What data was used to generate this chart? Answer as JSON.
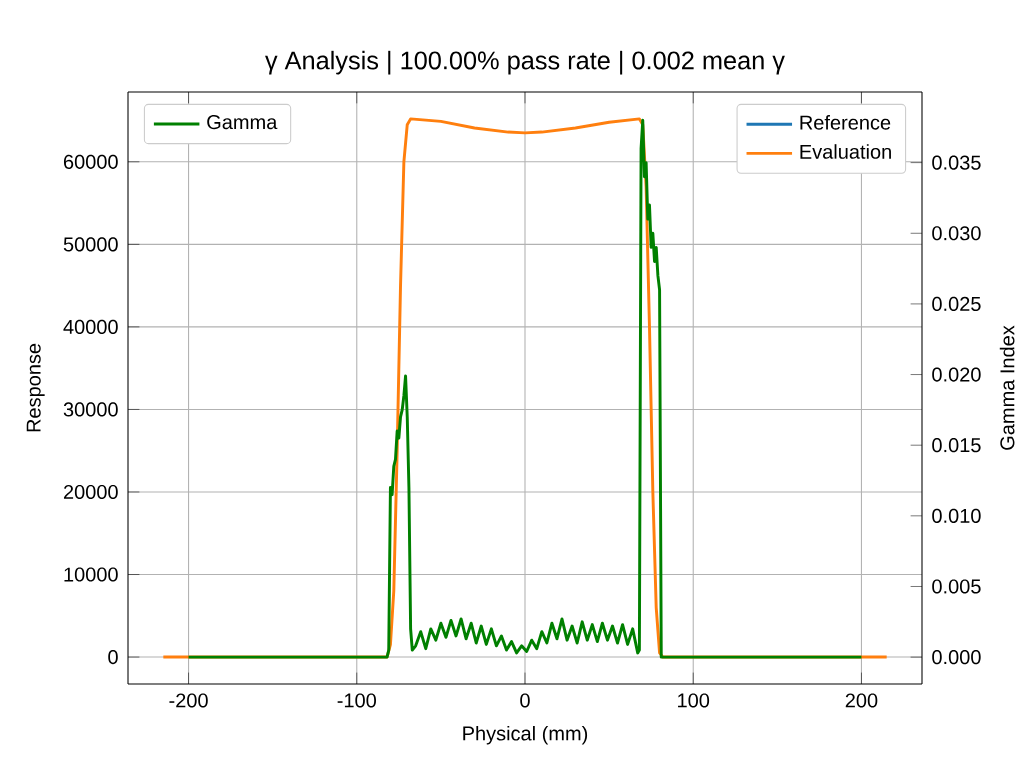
{
  "chart_data": {
    "type": "line",
    "title": "γ Analysis | 100.00% pass rate | 0.002 mean γ",
    "xlabel": "Physical (mm)",
    "ylabel": "Response",
    "y2label": "Gamma Index",
    "xlim": [
      -236,
      236
    ],
    "ylim": [
      -3260,
      68460
    ],
    "y2lim": [
      -0.0019,
      0.04
    ],
    "xticks": [
      -200,
      -100,
      0,
      100,
      200
    ],
    "yticks": [
      0,
      10000,
      20000,
      30000,
      40000,
      50000,
      60000
    ],
    "y2ticks": [
      {
        "value": 0,
        "label": "0.000"
      },
      {
        "value": 0.005,
        "label": "0.005"
      },
      {
        "value": 0.01,
        "label": "0.010"
      },
      {
        "value": 0.015,
        "label": "0.015"
      },
      {
        "value": 0.02,
        "label": "0.020"
      },
      {
        "value": 0.025,
        "label": "0.025"
      },
      {
        "value": 0.03,
        "label": "0.030"
      },
      {
        "value": 0.035,
        "label": "0.035"
      }
    ],
    "grid": true,
    "legend": "top right",
    "line_style": "solid",
    "marker": "none",
    "series": [
      {
        "name": "Reference",
        "color": "#1f77b4"
      },
      {
        "name": "Evaluation",
        "color": "#ff7f0e",
        "x": [
          -215,
          -82,
          -80,
          -78,
          -76,
          -74,
          -72,
          -70,
          -68,
          -50,
          -30,
          -10,
          0,
          10,
          30,
          50,
          68,
          70,
          72,
          74,
          76,
          78,
          80,
          82,
          215
        ],
        "values": [
          0,
          0,
          1500,
          8000,
          25000,
          45000,
          60000,
          64500,
          65200,
          64900,
          64100,
          63600,
          63500,
          63600,
          64100,
          64800,
          65200,
          64500,
          57000,
          40000,
          20000,
          6000,
          500,
          0,
          0
        ]
      },
      {
        "name": "Gamma",
        "color": "#008000",
        "axis": "y2",
        "x": [
          -200,
          -82,
          -81,
          -80,
          -79,
          -78,
          -77,
          -76,
          -75,
          -74,
          -73,
          -72,
          -71,
          -70,
          -69,
          -68,
          -67,
          -65,
          -62,
          -59,
          -56,
          -53,
          -50,
          -47,
          -44,
          -41,
          -38,
          -35,
          -32,
          -29,
          -26,
          -23,
          -20,
          -17,
          -14,
          -11,
          -8,
          -5,
          -2,
          1,
          4,
          7,
          10,
          13,
          16,
          19,
          22,
          25,
          28,
          31,
          34,
          37,
          40,
          43,
          46,
          49,
          52,
          55,
          58,
          61,
          64,
          67,
          68,
          69,
          70,
          71,
          72,
          73,
          74,
          75,
          76,
          77,
          78,
          79,
          80,
          81,
          200
        ],
        "values": [
          0,
          0,
          0.0005,
          0.012,
          0.0115,
          0.0135,
          0.014,
          0.016,
          0.0155,
          0.017,
          0.0175,
          0.0185,
          0.0199,
          0.017,
          0.012,
          0.002,
          0.0005,
          0.0008,
          0.0018,
          0.0006,
          0.002,
          0.0012,
          0.0024,
          0.0014,
          0.0026,
          0.0015,
          0.0027,
          0.0013,
          0.0024,
          0.001,
          0.0022,
          0.0009,
          0.002,
          0.0008,
          0.0015,
          0.0005,
          0.0011,
          0.0003,
          0.0008,
          0.0004,
          0.0012,
          0.0006,
          0.0018,
          0.001,
          0.0024,
          0.0013,
          0.0027,
          0.0012,
          0.0022,
          0.001,
          0.0025,
          0.0012,
          0.0023,
          0.0011,
          0.0024,
          0.0012,
          0.0022,
          0.001,
          0.0023,
          0.0009,
          0.002,
          0.0003,
          0.0005,
          0.036,
          0.038,
          0.034,
          0.035,
          0.031,
          0.032,
          0.029,
          0.03,
          0.028,
          0.029,
          0.027,
          0.026,
          0,
          0
        ]
      }
    ]
  }
}
